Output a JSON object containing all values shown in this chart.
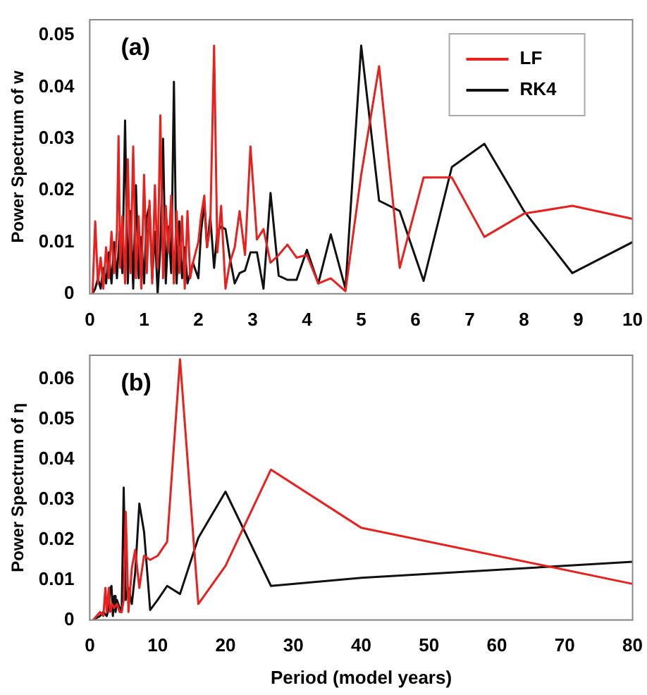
{
  "chart_data": [
    {
      "type": "line",
      "ylabel": "Power Spectrum of w",
      "annotations": [
        "(a)"
      ],
      "legend": "top right",
      "grid": false,
      "xlim": [
        0,
        10
      ],
      "xticks": [
        0,
        1,
        2,
        3,
        4,
        5,
        6,
        7,
        8,
        9,
        10
      ],
      "ylim": [
        0,
        0.053
      ],
      "yticks": [
        0,
        0.01,
        0.02,
        0.03,
        0.04,
        0.05
      ],
      "series": [
        {
          "name": "LF",
          "color": "#e8201e",
          "x": [
            0.05,
            0.1,
            0.15,
            0.2,
            0.25,
            0.3,
            0.35,
            0.4,
            0.45,
            0.5,
            0.53,
            0.56,
            0.6,
            0.65,
            0.7,
            0.75,
            0.8,
            0.85,
            0.9,
            0.95,
            1.0,
            1.05,
            1.1,
            1.15,
            1.2,
            1.25,
            1.3,
            1.35,
            1.4,
            1.45,
            1.5,
            1.55,
            1.6,
            1.65,
            1.7,
            1.75,
            1.8,
            1.85,
            1.9,
            2.0,
            2.05,
            2.11,
            2.16,
            2.22,
            2.29,
            2.35,
            2.42,
            2.5,
            2.58,
            2.67,
            2.76,
            2.86,
            2.96,
            3.08,
            3.2,
            3.33,
            3.48,
            3.64,
            3.81,
            4,
            4.21,
            4.44,
            4.71,
            5,
            5.33,
            5.71,
            6.15,
            6.67,
            7.27,
            8,
            8.89,
            10
          ],
          "values": [
            0,
            0.014,
            0.002,
            0.007,
            0.001,
            0.009,
            0.003,
            0.012,
            0.004,
            0.012,
            0.0305,
            0.005,
            0.015,
            0.002,
            0.026,
            0.004,
            0.0285,
            0.003,
            0.015,
            0.001,
            0.023,
            0.004,
            0.018,
            0.002,
            0.021,
            0.005,
            0.0345,
            0.003,
            0.017,
            0.008,
            0.019,
            0.002,
            0.016,
            0.004,
            0.015,
            0.001,
            0.016,
            0.003,
            0.006,
            0.01,
            0.015,
            0.019,
            0.009,
            0.013,
            0.048,
            0.008,
            0.017,
            0.001,
            0.006,
            0.009,
            0.016,
            0.0075,
            0.0285,
            0.0105,
            0.0125,
            0.006,
            0.0075,
            0.0095,
            0.007,
            0.0075,
            0.002,
            0.003,
            0.0005,
            0.023,
            0.044,
            0.005,
            0.0225,
            0.0225,
            0.011,
            0.0155,
            0.017,
            0.0145
          ]
        },
        {
          "name": "RK4",
          "color": "#111111",
          "x": [
            0.05,
            0.1,
            0.15,
            0.2,
            0.25,
            0.3,
            0.35,
            0.4,
            0.45,
            0.5,
            0.55,
            0.6,
            0.65,
            0.7,
            0.75,
            0.8,
            0.85,
            0.9,
            0.95,
            1.0,
            1.05,
            1.1,
            1.15,
            1.2,
            1.25,
            1.3,
            1.35,
            1.4,
            1.45,
            1.5,
            1.55,
            1.6,
            1.65,
            1.7,
            1.75,
            1.8,
            1.9,
            2.0,
            2.05,
            2.11,
            2.16,
            2.22,
            2.29,
            2.35,
            2.42,
            2.5,
            2.58,
            2.67,
            2.76,
            2.86,
            2.96,
            3.08,
            3.2,
            3.33,
            3.48,
            3.64,
            3.81,
            4,
            4.21,
            4.44,
            4.71,
            5,
            5.33,
            5.71,
            6.15,
            6.67,
            7.27,
            8,
            8.89,
            10
          ],
          "values": [
            0,
            0.001,
            0.003,
            0.001,
            0.005,
            0.002,
            0.008,
            0.002,
            0.01,
            0.003,
            0.012,
            0.004,
            0.0335,
            0.002,
            0.016,
            0.001,
            0.021,
            0.003,
            0.011,
            0.002,
            0.015,
            0.017,
            0.003,
            0.012,
            0,
            0.009,
            0.03,
            0.002,
            0.013,
            0.004,
            0.041,
            0.002,
            0.014,
            0.003,
            0.009,
            0.002,
            0.006,
            0.003,
            0.012,
            0.0175,
            0.009,
            0.015,
            0.005,
            0.012,
            0.013,
            0.0125,
            0.007,
            0.002,
            0.004,
            0.0045,
            0.008,
            0.008,
            0.001,
            0.0195,
            0.0035,
            0.0027,
            0.0027,
            0.0085,
            0.002,
            0.0115,
            0.001,
            0.048,
            0.018,
            0.016,
            0.0025,
            0.0245,
            0.029,
            0.016,
            0.004,
            0.01
          ]
        }
      ]
    },
    {
      "type": "line",
      "ylabel": "Power Spectrum of η",
      "xlabel": "Period (model years)",
      "annotations": [
        "(b)"
      ],
      "grid": false,
      "xlim": [
        0,
        80
      ],
      "xticks": [
        0,
        10,
        20,
        30,
        40,
        50,
        60,
        70,
        80
      ],
      "ylim": [
        0,
        0.066
      ],
      "yticks": [
        0,
        0.01,
        0.02,
        0.03,
        0.04,
        0.05,
        0.06
      ],
      "series": [
        {
          "color": "#e8201e",
          "x": [
            0.5,
            1,
            1.5,
            2,
            2.3,
            2.5,
            2.8,
            3,
            3.3,
            3.6,
            4,
            4.4,
            4.7,
            5,
            5.3,
            5.7,
            6.2,
            6.7,
            7.3,
            8,
            8.9,
            10,
            11.4,
            13.3,
            16,
            20,
            26.7,
            40,
            80
          ],
          "values": [
            0,
            0.001,
            0.002,
            0.001,
            0.008,
            0.002,
            0.008,
            0.002,
            0.004,
            0.003,
            0.004,
            0.002,
            0.002,
            0.005,
            0.027,
            0.002,
            0.013,
            0.0175,
            0.008,
            0.016,
            0.015,
            0.016,
            0.0195,
            0.065,
            0.004,
            0.0135,
            0.0375,
            0.023,
            0.009
          ]
        },
        {
          "color": "#111111",
          "x": [
            0.5,
            1,
            1.5,
            2,
            2.5,
            2.8,
            3,
            3.2,
            3.4,
            3.6,
            3.8,
            4,
            4.4,
            4.7,
            5,
            5.3,
            5.7,
            6.2,
            6.7,
            7.3,
            8,
            8.9,
            10,
            11.4,
            13.3,
            16,
            20,
            26.7,
            40,
            80
          ],
          "values": [
            0,
            0.0005,
            0.001,
            0.002,
            0.001,
            0.003,
            0.008,
            0.0085,
            0.001,
            0.006,
            0.002,
            0.005,
            0.003,
            0.002,
            0.033,
            0.005,
            0.008,
            0.004,
            0.012,
            0.029,
            0.022,
            0.0025,
            0.005,
            0.0085,
            0.0065,
            0.0205,
            0.032,
            0.0085,
            0.0105,
            0.0145
          ]
        }
      ]
    }
  ]
}
